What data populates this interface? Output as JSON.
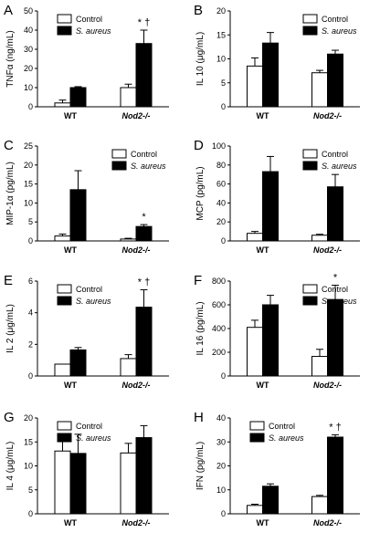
{
  "chart_data": [
    {
      "panel": "A",
      "type": "bar",
      "ylabel": "TNFα (ng/mL)",
      "ylim": [
        0,
        50
      ],
      "yticks": [
        0,
        10,
        20,
        30,
        40,
        50
      ],
      "categories": [
        "WT",
        "Nod2-/-"
      ],
      "series": [
        {
          "name": "Control",
          "values": [
            2,
            10
          ],
          "errors": [
            1.5,
            1.8
          ]
        },
        {
          "name": "S. aureus",
          "values": [
            10,
            33
          ],
          "errors": [
            0.5,
            7
          ]
        }
      ],
      "annotations": [
        {
          "category": 1,
          "series": 1,
          "text": "* †"
        }
      ],
      "legend": "top-left"
    },
    {
      "panel": "B",
      "type": "bar",
      "ylabel": "IL 10 (μg/mL)",
      "ylim": [
        0,
        20
      ],
      "yticks": [
        0,
        5,
        10,
        15,
        20
      ],
      "categories": [
        "WT",
        "Nod2-/-"
      ],
      "series": [
        {
          "name": "Control",
          "values": [
            8.5,
            7.1
          ],
          "errors": [
            1.7,
            0.5
          ]
        },
        {
          "name": "S. aureus",
          "values": [
            13.3,
            11
          ],
          "errors": [
            2.2,
            0.8
          ]
        }
      ],
      "annotations": [],
      "legend": "top-right"
    },
    {
      "panel": "C",
      "type": "bar",
      "ylabel": "MIP-1α (pg/mL)",
      "ylim": [
        0,
        25
      ],
      "yticks": [
        0,
        5,
        10,
        15,
        20,
        25
      ],
      "categories": [
        "WT",
        "Nod2-/-"
      ],
      "series": [
        {
          "name": "Control",
          "values": [
            1.3,
            0.5
          ],
          "errors": [
            0.5,
            0.2
          ]
        },
        {
          "name": "S. aureus",
          "values": [
            13.5,
            3.8
          ],
          "errors": [
            5,
            0.5
          ]
        }
      ],
      "annotations": [
        {
          "category": 1,
          "series": 1,
          "text": "*"
        }
      ],
      "legend": "top-right"
    },
    {
      "panel": "D",
      "type": "bar",
      "ylabel": "MCP (pg/mL)",
      "ylim": [
        0,
        100
      ],
      "yticks": [
        0,
        20,
        40,
        60,
        80,
        100
      ],
      "categories": [
        "WT",
        "Nod2-/-"
      ],
      "series": [
        {
          "name": "Control",
          "values": [
            8,
            6
          ],
          "errors": [
            2,
            1
          ]
        },
        {
          "name": "S. aureus",
          "values": [
            73,
            57
          ],
          "errors": [
            16,
            13
          ]
        }
      ],
      "annotations": [],
      "legend": "top-right"
    },
    {
      "panel": "E",
      "type": "bar",
      "ylabel": "IL 2 (μg/mL)",
      "ylim": [
        0,
        6
      ],
      "yticks": [
        0,
        2,
        4,
        6
      ],
      "categories": [
        "WT",
        "Nod2-/-"
      ],
      "series": [
        {
          "name": "Control",
          "values": [
            0.75,
            1.1
          ],
          "errors": [
            0,
            0.25
          ]
        },
        {
          "name": "S. aureus",
          "values": [
            1.65,
            4.35
          ],
          "errors": [
            0.15,
            1.1
          ]
        }
      ],
      "annotations": [
        {
          "category": 1,
          "series": 1,
          "text": "* †"
        }
      ],
      "legend": "top-left"
    },
    {
      "panel": "F",
      "type": "bar",
      "ylabel": "IL 16 (pg/mL)",
      "ylim": [
        0,
        800
      ],
      "yticks": [
        0,
        200,
        400,
        600,
        800
      ],
      "categories": [
        "WT",
        "Nod2-/-"
      ],
      "series": [
        {
          "name": "Control",
          "values": [
            410,
            165
          ],
          "errors": [
            60,
            60
          ]
        },
        {
          "name": "S. aureus",
          "values": [
            600,
            645
          ],
          "errors": [
            80,
            120
          ]
        }
      ],
      "annotations": [
        {
          "category": 1,
          "series": 1,
          "text": "*"
        }
      ],
      "legend": "top-right"
    },
    {
      "panel": "G",
      "type": "bar",
      "ylabel": "IL 4 (μg/mL)",
      "ylim": [
        0,
        20
      ],
      "yticks": [
        0,
        5,
        10,
        15,
        20
      ],
      "categories": [
        "WT",
        "Nod2-/-"
      ],
      "series": [
        {
          "name": "Control",
          "values": [
            13.1,
            12.7
          ],
          "errors": [
            2.5,
            2
          ]
        },
        {
          "name": "S. aureus",
          "values": [
            12.6,
            15.9
          ],
          "errors": [
            4,
            2.5
          ]
        }
      ],
      "annotations": [],
      "legend": "top-left"
    },
    {
      "panel": "H",
      "type": "bar",
      "ylabel": "IFN (pg/mL)",
      "ylim": [
        0,
        40
      ],
      "yticks": [
        0,
        10,
        20,
        30,
        40
      ],
      "categories": [
        "WT",
        "Nod2-/-"
      ],
      "series": [
        {
          "name": "Control",
          "values": [
            3.5,
            7.2
          ],
          "errors": [
            0.5,
            0.5
          ]
        },
        {
          "name": "S. aureus",
          "values": [
            11.5,
            32
          ],
          "errors": [
            1,
            1
          ]
        }
      ],
      "annotations": [
        {
          "category": 1,
          "series": 1,
          "text": "* †"
        }
      ],
      "legend": "top-left"
    }
  ]
}
